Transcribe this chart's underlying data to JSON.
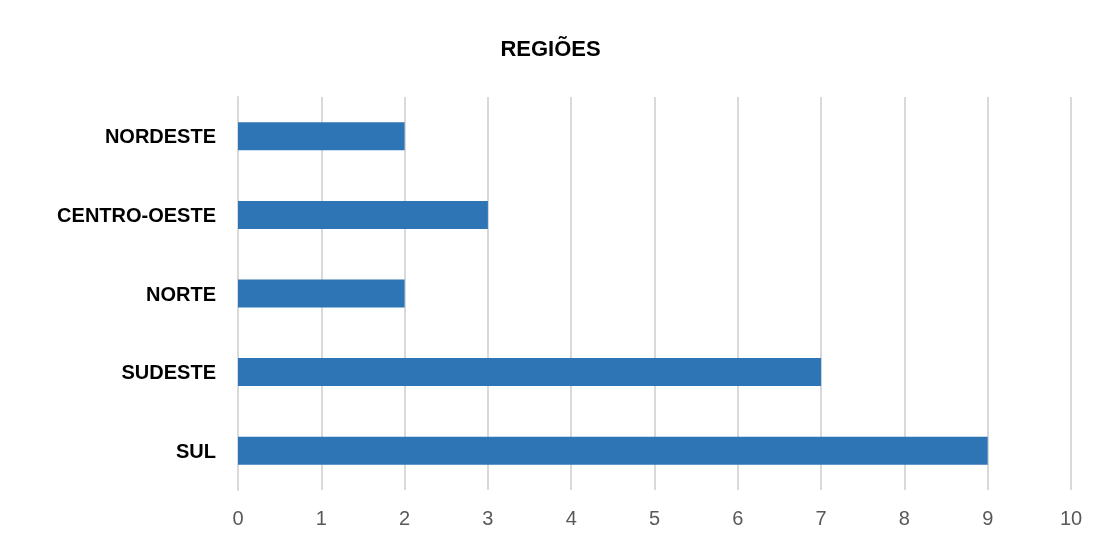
{
  "chart_data": {
    "type": "bar",
    "title": "REGIÕES",
    "orientation": "horizontal",
    "categories": [
      "NORDESTE",
      "CENTRO-OESTE",
      "NORTE",
      "SUDESTE",
      "SUL"
    ],
    "values": [
      2,
      3,
      2,
      7,
      9
    ],
    "color": "#2e75b6",
    "xlim": [
      0,
      10
    ],
    "xticks": [
      0,
      1,
      2,
      3,
      4,
      5,
      6,
      7,
      8,
      9,
      10
    ],
    "grid": "x"
  }
}
